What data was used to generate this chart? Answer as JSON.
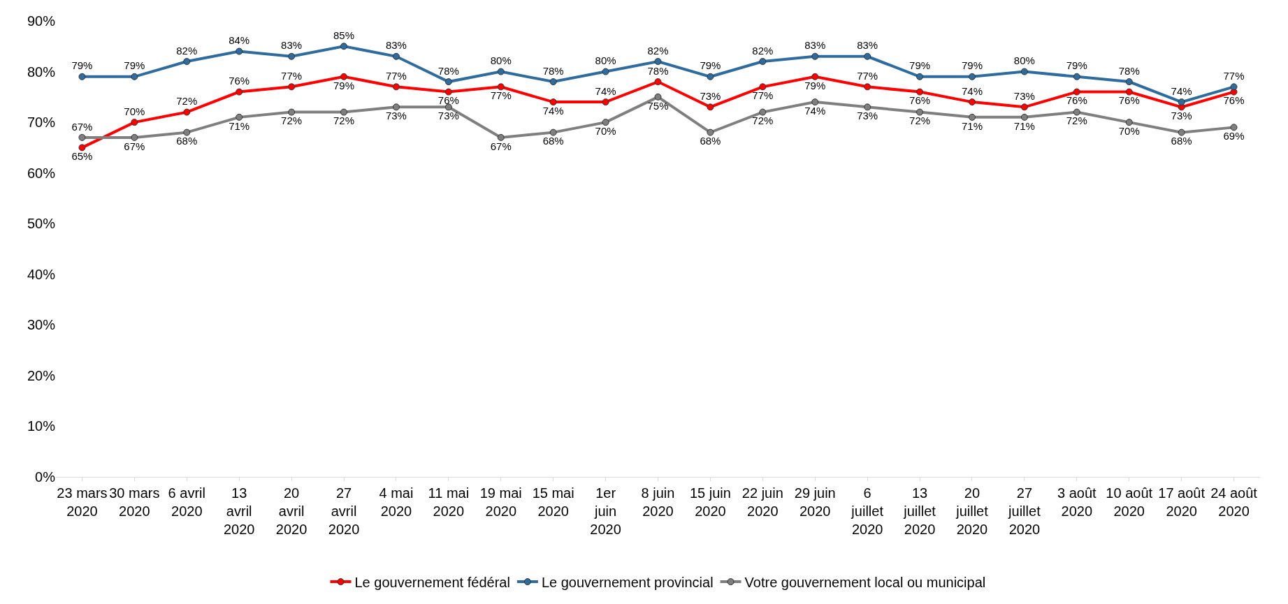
{
  "chart_data": {
    "type": "line",
    "categories": [
      "23 mars 2020",
      "30 mars 2020",
      "6 avril 2020",
      "13 avril 2020",
      "20 avril 2020",
      "27 avril 2020",
      "4 mai 2020",
      "11 mai 2020",
      "19 mai 2020",
      "15 mai 2020",
      "1er juin 2020",
      "8 juin 2020",
      "15 juin 2020",
      "22 juin 2020",
      "29 juin 2020",
      "6 juillet 2020",
      "13 juillet 2020",
      "20 juillet 2020",
      "27 juillet 2020",
      "3 août 2020",
      "10 août 2020",
      "17 août 2020",
      "24 août 2020"
    ],
    "series": [
      {
        "name": "Le gouvernement fédéral",
        "color": "#ff0000",
        "values": [
          65,
          70,
          72,
          76,
          77,
          79,
          77,
          76,
          77,
          74,
          74,
          78,
          73,
          77,
          79,
          77,
          76,
          74,
          73,
          76,
          76,
          73,
          76
        ],
        "value_labels": [
          "65%",
          "70%",
          "72%",
          "76%",
          "77%",
          "79%",
          "77%",
          "76%",
          "77%",
          "74%",
          "74%",
          "78%",
          "73%",
          "77%",
          "79%",
          "77%",
          "76%",
          "74%",
          "73%",
          "76%",
          "76%",
          "73%",
          "76%"
        ]
      },
      {
        "name": "Le gouvernement provincial",
        "color": "#2e6b9e",
        "values": [
          79,
          79,
          82,
          84,
          83,
          85,
          83,
          78,
          80,
          78,
          80,
          82,
          79,
          82,
          83,
          83,
          79,
          79,
          80,
          79,
          78,
          74,
          77
        ],
        "value_labels": [
          "79%",
          "79%",
          "82%",
          "84%",
          "83%",
          "85%",
          "83%",
          "78%",
          "80%",
          "78%",
          "80%",
          "82%",
          "79%",
          "82%",
          "83%",
          "83%",
          "79%",
          "79%",
          "80%",
          "79%",
          "78%",
          "74%",
          "77%"
        ]
      },
      {
        "name": "Votre gouvernement local ou municipal",
        "color": "#7f7f7f",
        "values": [
          67,
          67,
          68,
          71,
          72,
          72,
          73,
          73,
          67,
          68,
          70,
          75,
          68,
          72,
          74,
          73,
          72,
          71,
          71,
          72,
          70,
          68,
          69
        ],
        "value_labels": [
          "67%",
          "67%",
          "68%",
          "71%",
          "72%",
          "72%",
          "73%",
          "73%",
          "67%",
          "68%",
          "70%",
          "75%",
          "68%",
          "72%",
          "74%",
          "73%",
          "72%",
          "71%",
          "71%",
          "72%",
          "70%",
          "68%",
          "69%"
        ]
      }
    ],
    "ylim": [
      0,
      90
    ],
    "yticks": [
      {
        "value": 0,
        "label": "0%"
      },
      {
        "value": 10,
        "label": "10%"
      },
      {
        "value": 20,
        "label": "20%"
      },
      {
        "value": 30,
        "label": "30%"
      },
      {
        "value": 40,
        "label": "40%"
      },
      {
        "value": 50,
        "label": "50%"
      },
      {
        "value": 60,
        "label": "60%"
      },
      {
        "value": 70,
        "label": "70%"
      },
      {
        "value": 80,
        "label": "80%"
      },
      {
        "value": 90,
        "label": "90%"
      }
    ],
    "legend": "bottom",
    "marker": "circle",
    "line_style": "solid"
  }
}
